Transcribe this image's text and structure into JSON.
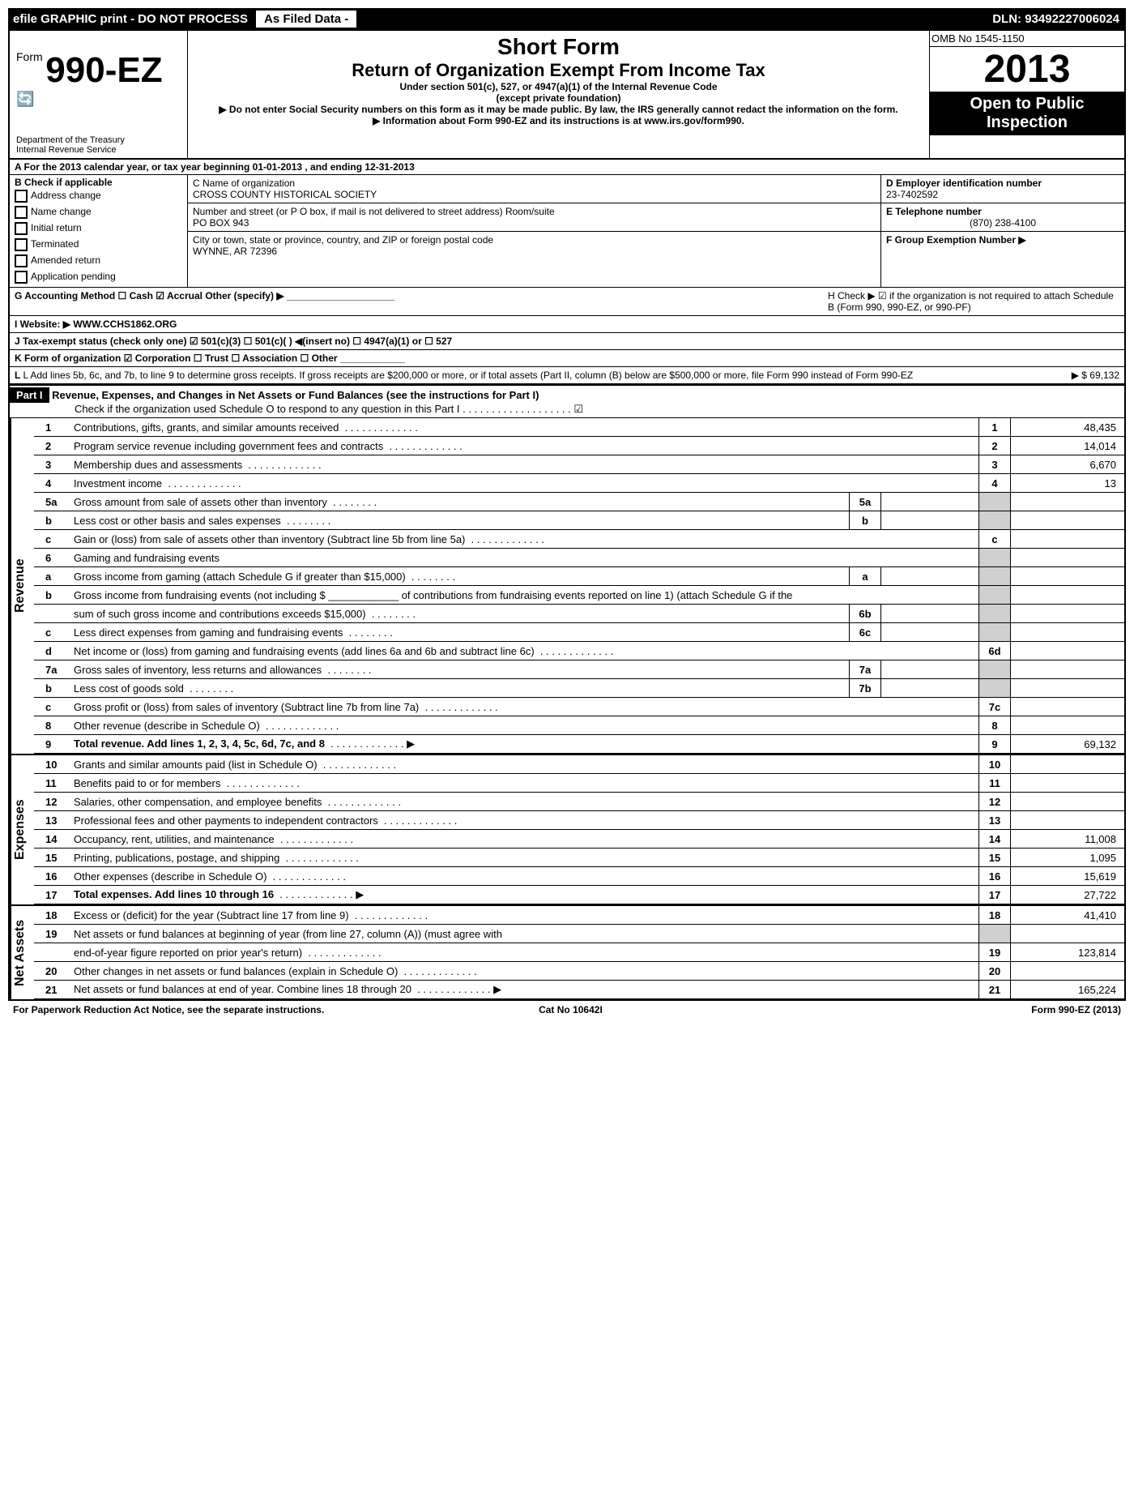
{
  "topbar": {
    "left": "efile GRAPHIC print - DO NOT PROCESS",
    "mid": "As Filed Data -",
    "dln": "DLN: 93492227006024"
  },
  "header": {
    "form_prefix": "Form",
    "form_no": "990-EZ",
    "dept1": "Department of the Treasury",
    "dept2": "Internal Revenue Service",
    "short": "Short Form",
    "title": "Return of Organization Exempt From Income Tax",
    "sub1": "Under section 501(c), 527, or 4947(a)(1) of the Internal Revenue Code",
    "sub2": "(except private foundation)",
    "warn": "▶ Do not enter Social Security numbers on this form as it may be made public. By law, the IRS generally cannot redact the information on the form.",
    "info": "▶ Information about Form 990-EZ and its instructions is at www.irs.gov/form990.",
    "omb": "OMB No 1545-1150",
    "year": "2013",
    "open1": "Open to Public",
    "open2": "Inspection"
  },
  "rowA": "A  For the 2013 calendar year, or tax year beginning 01-01-2013          , and ending 12-31-2013",
  "sectionB": {
    "label": "B  Check if applicable",
    "items": [
      "Address change",
      "Name change",
      "Initial return",
      "Terminated",
      "Amended return",
      "Application pending"
    ]
  },
  "sectionC": {
    "c_label": "C Name of organization",
    "c_name": "CROSS COUNTY HISTORICAL SOCIETY",
    "street_label": "Number and street (or P O box, if mail is not delivered to street address) Room/suite",
    "street": "PO BOX 943",
    "city_label": "City or town, state or province, country, and ZIP or foreign postal code",
    "city": "WYNNE, AR  72396"
  },
  "sectionD": {
    "d_label": "D Employer identification number",
    "d_val": "23-7402592",
    "e_label": "E Telephone number",
    "e_val": "(870) 238-4100",
    "f_label": "F Group Exemption Number  ▶"
  },
  "g": "G Accounting Method    ☐ Cash  ☑ Accrual   Other (specify) ▶ ____________________",
  "h": "H  Check ▶  ☑  if the organization is not required to attach Schedule B (Form 990, 990-EZ, or 990-PF)",
  "i": "I Website: ▶  WWW.CCHS1862.ORG",
  "j": "J Tax-exempt status (check only one) ☑ 501(c)(3)   ☐ 501(c)( ) ◀(insert no) ☐ 4947(a)(1) or ☐ 527",
  "k": "K Form of organization   ☑ Corporation  ☐ Trust  ☐ Association  ☐ Other ____________",
  "l": "L Add lines 5b, 6c, and 7b, to line 9 to determine gross receipts. If gross receipts are $200,000 or more, or if total assets (Part II, column (B) below are $500,000 or more, file Form 990 instead of Form 990-EZ",
  "l_amount": "▶ $ 69,132",
  "part1": {
    "label": "Part I",
    "title": "Revenue, Expenses, and Changes in Net Assets or Fund Balances (see the instructions for Part I)",
    "sub": "Check if the organization used Schedule O to respond to any question in this Part I . . . . . . . . . . . . . . . . . . . ☑"
  },
  "revenue_label": "Revenue",
  "expenses_label": "Expenses",
  "netassets_label": "Net Assets",
  "lines": {
    "1": {
      "desc": "Contributions, gifts, grants, and similar amounts received",
      "val": "48,435"
    },
    "2": {
      "desc": "Program service revenue including government fees and contracts",
      "val": "14,014"
    },
    "3": {
      "desc": "Membership dues and assessments",
      "val": "6,670"
    },
    "4": {
      "desc": "Investment income",
      "val": "13"
    },
    "5a": {
      "desc": "Gross amount from sale of assets other than inventory"
    },
    "5b": {
      "desc": "Less cost or other basis and sales expenses"
    },
    "5c": {
      "desc": "Gain or (loss) from sale of assets other than inventory (Subtract line 5b from line 5a)"
    },
    "6": {
      "desc": "Gaming and fundraising events"
    },
    "6a": {
      "desc": "Gross income from gaming (attach Schedule G if greater than $15,000)"
    },
    "6b1": {
      "desc": "Gross income from fundraising events (not including $ ____________ of contributions from fundraising events reported on line 1) (attach Schedule G if the"
    },
    "6b2": {
      "desc": "sum of such gross income and contributions exceeds $15,000)"
    },
    "6c": {
      "desc": "Less direct expenses from gaming and fundraising events"
    },
    "6d": {
      "desc": "Net income or (loss) from gaming and fundraising events (add lines 6a and 6b and subtract line 6c)"
    },
    "7a": {
      "desc": "Gross sales of inventory, less returns and allowances"
    },
    "7b": {
      "desc": "Less cost of goods sold"
    },
    "7c": {
      "desc": "Gross profit or (loss) from sales of inventory (Subtract line 7b from line 7a)"
    },
    "8": {
      "desc": "Other revenue (describe in Schedule O)"
    },
    "9": {
      "desc": "Total revenue. Add lines 1, 2, 3, 4, 5c, 6d, 7c, and 8",
      "val": "69,132",
      "bold": true
    },
    "10": {
      "desc": "Grants and similar amounts paid (list in Schedule O)"
    },
    "11": {
      "desc": "Benefits paid to or for members"
    },
    "12": {
      "desc": "Salaries, other compensation, and employee benefits"
    },
    "13": {
      "desc": "Professional fees and other payments to independent contractors"
    },
    "14": {
      "desc": "Occupancy, rent, utilities, and maintenance",
      "val": "11,008"
    },
    "15": {
      "desc": "Printing, publications, postage, and shipping",
      "val": "1,095"
    },
    "16": {
      "desc": "Other expenses (describe in Schedule O)",
      "val": "15,619"
    },
    "17": {
      "desc": "Total expenses. Add lines 10 through 16",
      "val": "27,722",
      "bold": true
    },
    "18": {
      "desc": "Excess or (deficit) for the year (Subtract line 17 from line 9)",
      "val": "41,410"
    },
    "19a": {
      "desc": "Net assets or fund balances at beginning of year (from line 27, column (A)) (must agree with"
    },
    "19b": {
      "desc": "end-of-year figure reported on prior year's return)",
      "val": "123,814"
    },
    "20": {
      "desc": "Other changes in net assets or fund balances (explain in Schedule O)"
    },
    "21": {
      "desc": "Net assets or fund balances at end of year. Combine lines 18 through 20",
      "val": "165,224"
    }
  },
  "footer": {
    "left": "For Paperwork Reduction Act Notice, see the separate instructions.",
    "mid": "Cat No 10642I",
    "right": "Form 990-EZ (2013)"
  }
}
